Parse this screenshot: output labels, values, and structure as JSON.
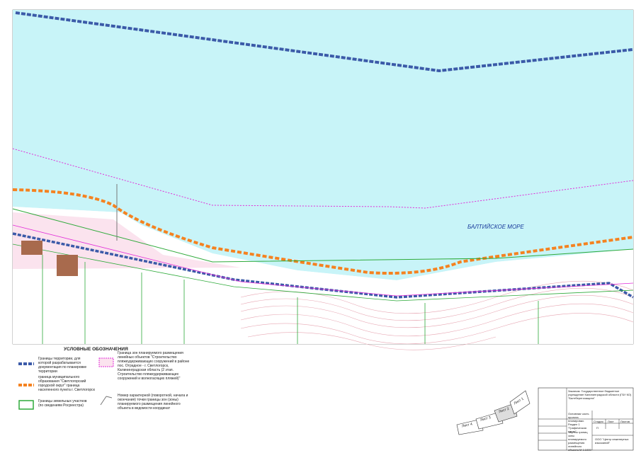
{
  "map": {
    "sea_label": "БАЛТИЙСКОЕ МОРЕ"
  },
  "legend": {
    "title": "УСЛОВНЫЕ ОБОЗНАЧЕНИЯ",
    "items": [
      "Границы территории, для которой разрабатывается документация по планировке территории",
      "граница муниципального образования \"Светлогорский городской округ\" граница населенного пункта г. Светлогорск",
      "Границы земельных участков (по сведениям Росреестра)",
      "Граница зон планируемого размещения линейных объектов \"Строительство пляжеудерживающих сооружений в районе пос. Отрадное - г. Светлогорск, Калининградская область (2 этап. Строительство пляжеудерживающих сооружений и волногасящих пляжей)\"",
      "Номер характерной (поворотной, начала и окончания) точки границы зон (зоны) планируемого размещения линейного объекта в ведомости координат"
    ]
  },
  "sheets": [
    "Лист 4",
    "Лист 3",
    "Лист 2",
    "Лист 1"
  ],
  "title_block": {
    "customer": "Заказчик: Государственное бюджетное учреждение Калининградской области (ГБУ КО) \"Балтберегозащита\"",
    "section": "Основная часть проекта планировки. Раздел 1 \"Графическая часть\"",
    "drawing": "Чертёж границ зоны планируемого размещения линейного объекта М 1:1000",
    "company": "ООО \"Центр инженерных изысканий\"",
    "stage_header": "Стадия",
    "sheet_header": "Лист",
    "sheets_header": "Листов",
    "stage": "П"
  }
}
